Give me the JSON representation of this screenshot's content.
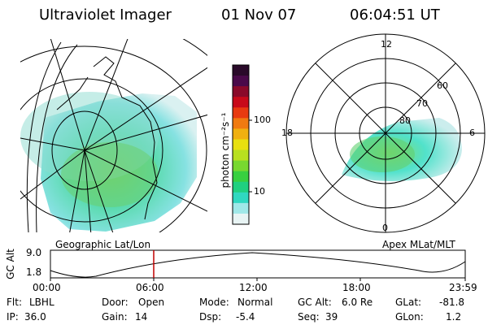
{
  "header": {
    "title": "Ultraviolet Imager",
    "date": "01 Nov 07",
    "time": "06:04:51 UT"
  },
  "colorbar": {
    "unit": "photon cm⁻²s⁻¹",
    "ticks": [
      "100",
      "10"
    ],
    "colors": [
      "#2a0a2a",
      "#4a0a4a",
      "#8a0a2a",
      "#c80a1a",
      "#e83a10",
      "#f07a10",
      "#f0b010",
      "#e8e010",
      "#b8e020",
      "#78d830",
      "#38d040",
      "#20d080",
      "#30d8c0",
      "#a0e8e8",
      "#e8f4f4"
    ]
  },
  "left_panel": {
    "label": "Geographic Lat/Lon"
  },
  "right_panel": {
    "label": "Apex MLat/MLT",
    "mlt_labels": {
      "top": "12",
      "left": "18",
      "right": "6",
      "bottom": "0"
    },
    "mlat_labels": [
      "60",
      "70",
      "80"
    ]
  },
  "altitude_plot": {
    "ylabel": "GC Alt",
    "yticks": [
      "9.0",
      "1.8"
    ],
    "xticks": [
      "00:00",
      "06:00",
      "12:00",
      "18:00",
      "23:59"
    ],
    "current_time_marker": "06:04:51"
  },
  "status": {
    "flt_label": "Flt:",
    "flt_value": "LBHL",
    "door_label": "Door:",
    "door_value": "Open",
    "mode_label": "Mode:",
    "mode_value": "Normal",
    "gcalt_label": "GC Alt:",
    "gcalt_value": "6.0 Re",
    "glat_label": "GLat:",
    "glat_value": "-81.8",
    "ip_label": "IP:",
    "ip_value": "36.0",
    "gain_label": "Gain:",
    "gain_value": "14",
    "dsp_label": "Dsp:",
    "dsp_value": "-5.4",
    "seq_label": "Seq:",
    "seq_value": "39",
    "glon_label": "GLon:",
    "glon_value": "1.2"
  }
}
